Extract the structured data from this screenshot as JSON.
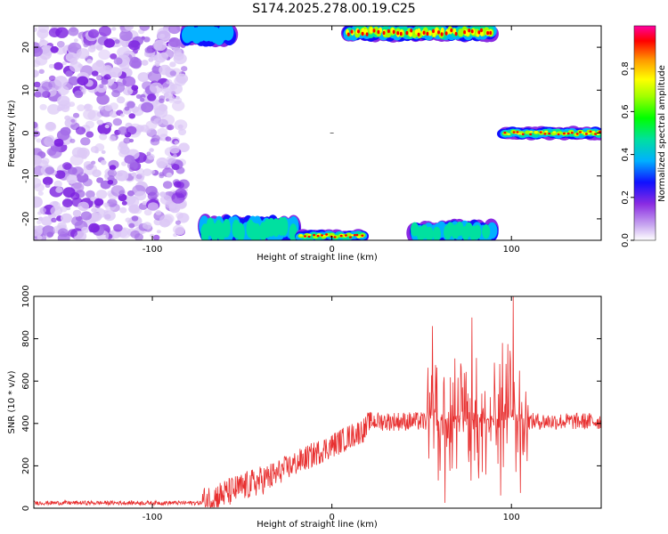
{
  "title": "S174.2025.278.00.19.C25",
  "chart_data": [
    {
      "type": "heatmap",
      "xlabel": "Height of straight line (km)",
      "ylabel": "Frequency (Hz)",
      "xlim": [
        -166,
        150
      ],
      "ylim": [
        -25,
        25
      ],
      "xticks": [
        -100,
        0,
        100
      ],
      "yticks": [
        -20,
        -10,
        0,
        10,
        20
      ],
      "colorbar": {
        "label": "Normalized spectral amplitude",
        "range": [
          0,
          1
        ],
        "ticks": [
          "0.0",
          "0.2",
          "0.4",
          "0.6",
          "0.8"
        ]
      },
      "features": [
        {
          "name": "noise-region",
          "x": [
            -166,
            -82
          ],
          "y": [
            -25,
            25
          ],
          "amplitude": 0.1
        },
        {
          "name": "upper-band-left",
          "x": [
            -82,
            -56
          ],
          "y": [
            21,
            25
          ],
          "amplitude": 0.3
        },
        {
          "name": "lower-band-left",
          "x": [
            -72,
            -20
          ],
          "y": [
            -25,
            -20
          ],
          "amplitude": 0.5
        },
        {
          "name": "lower-band-center",
          "x": [
            -18,
            18
          ],
          "y": [
            -25,
            -23
          ],
          "amplitude": 0.85
        },
        {
          "name": "upper-band-center",
          "x": [
            8,
            90
          ],
          "y": [
            22,
            25
          ],
          "amplitude": 0.9
        },
        {
          "name": "lower-band-right",
          "x": [
            45,
            90
          ],
          "y": [
            -25,
            -21
          ],
          "amplitude": 0.4
        },
        {
          "name": "zero-line-right",
          "x": [
            95,
            150
          ],
          "y": [
            -1,
            1
          ],
          "amplitude": 0.95
        }
      ]
    },
    {
      "type": "line",
      "xlabel": "Height of straight line (km)",
      "ylabel": "SNR (10 * v/v)",
      "xlim": [
        -166,
        150
      ],
      "ylim": [
        0,
        1000
      ],
      "xticks": [
        -100,
        0,
        100
      ],
      "yticks": [
        0,
        200,
        400,
        600,
        800,
        1000
      ],
      "series_color": "#e83030",
      "segments": [
        {
          "x": [
            -166,
            -72
          ],
          "mean": 25,
          "spread": 10
        },
        {
          "x": [
            -72,
            -30
          ],
          "mean_start": 30,
          "mean_end": 160,
          "spread": 70
        },
        {
          "x": [
            -30,
            20
          ],
          "mean_start": 170,
          "mean_end": 380,
          "spread": 60
        },
        {
          "x": [
            20,
            53
          ],
          "mean": 410,
          "spread": 45
        },
        {
          "x": [
            53,
            98
          ],
          "mean": 420,
          "spread": 300
        },
        {
          "x": [
            98,
            110
          ],
          "mean": 430,
          "spread": 380
        },
        {
          "x": [
            110,
            150
          ],
          "mean": 410,
          "spread": 40
        }
      ],
      "peaks": [
        {
          "x": 56,
          "y": 860
        },
        {
          "x": 63,
          "y": 25
        },
        {
          "x": 78,
          "y": 900
        },
        {
          "x": 94,
          "y": 60
        },
        {
          "x": 101,
          "y": 1000
        },
        {
          "x": 95,
          "y": 780
        }
      ]
    }
  ]
}
